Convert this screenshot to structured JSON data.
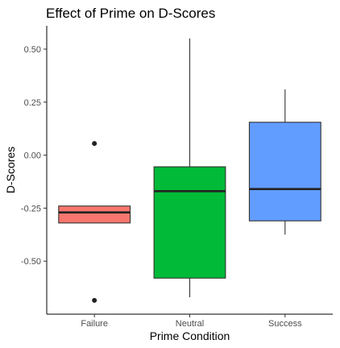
{
  "chart_data": {
    "type": "box",
    "title": "Effect of Prime on D-Scores",
    "xlabel": "Prime Condition",
    "ylabel": "D-Scores",
    "ylim": [
      -0.75,
      0.61
    ],
    "yticks": [
      -0.5,
      -0.25,
      0.0,
      0.25,
      0.5
    ],
    "ytick_labels": [
      "-0.50",
      "-0.25",
      "0.00",
      "0.25",
      "0.50"
    ],
    "grid": false,
    "legend": "none",
    "categories": [
      "Failure",
      "Neutral",
      "Success"
    ],
    "boxes": [
      {
        "category": "Failure",
        "color": "#F8766D",
        "whisker_low": -0.32,
        "q1": -0.32,
        "median": -0.27,
        "q3": -0.24,
        "whisker_high": -0.24,
        "outliers": [
          0.055,
          -0.685
        ]
      },
      {
        "category": "Neutral",
        "color": "#00BA38",
        "whisker_low": -0.67,
        "q1": -0.58,
        "median": -0.17,
        "q3": -0.055,
        "whisker_high": 0.55,
        "outliers": []
      },
      {
        "category": "Success",
        "color": "#619CFF",
        "whisker_low": -0.375,
        "q1": -0.31,
        "median": -0.16,
        "q3": 0.155,
        "whisker_high": 0.31,
        "outliers": []
      }
    ]
  }
}
